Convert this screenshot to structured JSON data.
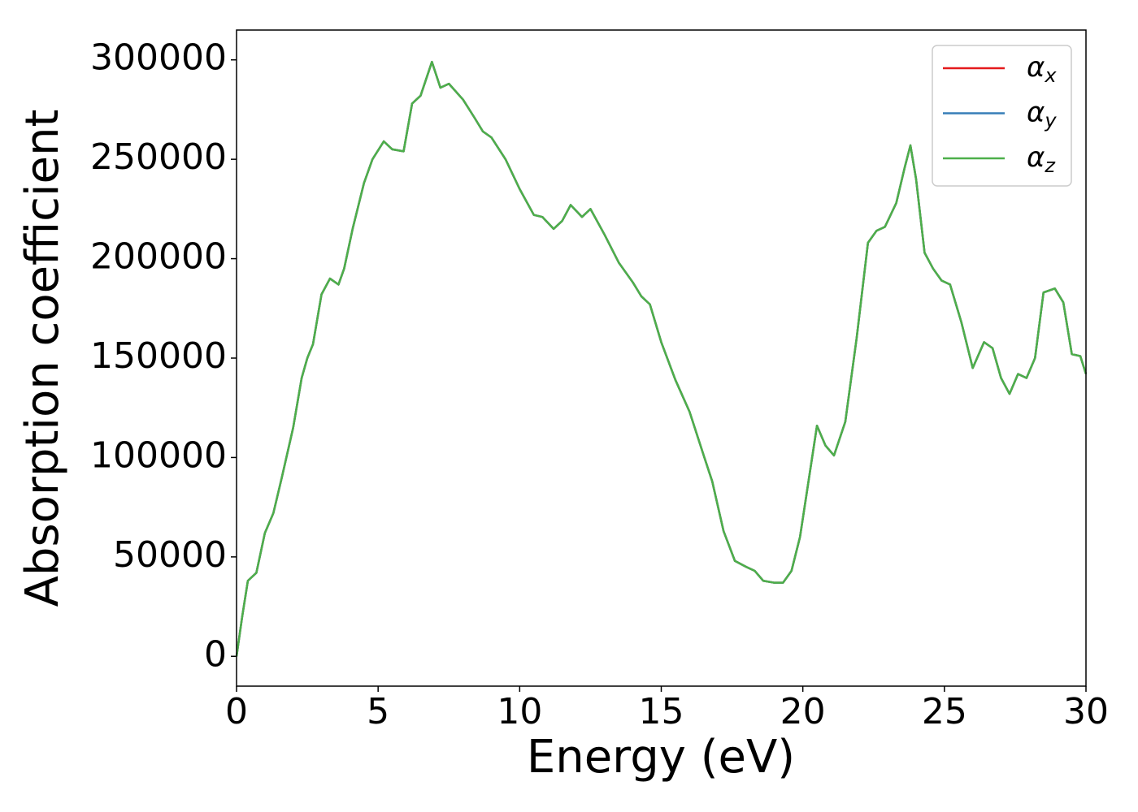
{
  "chart_data": {
    "type": "line",
    "xlabel": "Energy (eV)",
    "ylabel": "Absorption coefficient",
    "x": [
      0,
      0.2,
      0.4,
      0.7,
      1.0,
      1.3,
      1.6,
      2.0,
      2.3,
      2.5,
      2.7,
      3.0,
      3.3,
      3.6,
      3.8,
      4.1,
      4.5,
      4.8,
      5.2,
      5.5,
      5.9,
      6.2,
      6.5,
      6.9,
      7.2,
      7.5,
      8.0,
      8.4,
      8.7,
      9.0,
      9.5,
      10.0,
      10.5,
      10.8,
      11.2,
      11.5,
      11.8,
      12.2,
      12.5,
      13.0,
      13.5,
      14.0,
      14.3,
      14.6,
      15.0,
      15.5,
      16.0,
      16.5,
      16.8,
      17.2,
      17.6,
      18.0,
      18.3,
      18.6,
      19.0,
      19.3,
      19.6,
      19.9,
      20.2,
      20.5,
      20.8,
      21.1,
      21.5,
      21.9,
      22.3,
      22.6,
      22.9,
      23.3,
      23.6,
      23.8,
      24.0,
      24.3,
      24.6,
      24.9,
      25.2,
      25.6,
      26.0,
      26.4,
      26.7,
      27.0,
      27.3,
      27.6,
      27.9,
      28.2,
      28.5,
      28.9,
      29.2,
      29.5,
      29.8,
      30.0
    ],
    "series": [
      {
        "name": "αx",
        "color": "#e41a1c",
        "values": [
          0,
          20000,
          38000,
          42000,
          62000,
          72000,
          90000,
          115000,
          140000,
          150000,
          157000,
          182000,
          190000,
          187000,
          195000,
          215000,
          238000,
          250000,
          259000,
          255000,
          254000,
          278000,
          282000,
          299000,
          286000,
          288000,
          280000,
          271000,
          264000,
          261000,
          250000,
          235000,
          222000,
          221000,
          215000,
          219000,
          227000,
          221000,
          225000,
          212000,
          198000,
          188000,
          181000,
          177000,
          158000,
          139000,
          123000,
          101000,
          88000,
          63000,
          48000,
          45000,
          43000,
          38000,
          37000,
          37000,
          43000,
          60000,
          88000,
          116000,
          106000,
          101000,
          118000,
          160000,
          208000,
          214000,
          216000,
          228000,
          246000,
          257000,
          240000,
          203000,
          195000,
          189000,
          187000,
          168000,
          145000,
          158000,
          155000,
          140000,
          132000,
          142000,
          140000,
          150000,
          183000,
          185000,
          178000,
          152000,
          151000,
          142000
        ]
      },
      {
        "name": "αy",
        "color": "#377eb8",
        "values": [
          0,
          20000,
          38000,
          42000,
          62000,
          72000,
          90000,
          115000,
          140000,
          150000,
          157000,
          182000,
          190000,
          187000,
          195000,
          215000,
          238000,
          250000,
          259000,
          255000,
          254000,
          278000,
          282000,
          299000,
          286000,
          288000,
          280000,
          271000,
          264000,
          261000,
          250000,
          235000,
          222000,
          221000,
          215000,
          219000,
          227000,
          221000,
          225000,
          212000,
          198000,
          188000,
          181000,
          177000,
          158000,
          139000,
          123000,
          101000,
          88000,
          63000,
          48000,
          45000,
          43000,
          38000,
          37000,
          37000,
          43000,
          60000,
          88000,
          116000,
          106000,
          101000,
          118000,
          160000,
          208000,
          214000,
          216000,
          228000,
          246000,
          257000,
          240000,
          203000,
          195000,
          189000,
          187000,
          168000,
          145000,
          158000,
          155000,
          140000,
          132000,
          142000,
          140000,
          150000,
          183000,
          185000,
          178000,
          152000,
          151000,
          142000
        ]
      },
      {
        "name": "αz",
        "color": "#4daf4a",
        "values": [
          0,
          20000,
          38000,
          42000,
          62000,
          72000,
          90000,
          115000,
          140000,
          150000,
          157000,
          182000,
          190000,
          187000,
          195000,
          215000,
          238000,
          250000,
          259000,
          255000,
          254000,
          278000,
          282000,
          299000,
          286000,
          288000,
          280000,
          271000,
          264000,
          261000,
          250000,
          235000,
          222000,
          221000,
          215000,
          219000,
          227000,
          221000,
          225000,
          212000,
          198000,
          188000,
          181000,
          177000,
          158000,
          139000,
          123000,
          101000,
          88000,
          63000,
          48000,
          45000,
          43000,
          38000,
          37000,
          37000,
          43000,
          60000,
          88000,
          116000,
          106000,
          101000,
          118000,
          160000,
          208000,
          214000,
          216000,
          228000,
          246000,
          257000,
          240000,
          203000,
          195000,
          189000,
          187000,
          168000,
          145000,
          158000,
          155000,
          140000,
          132000,
          142000,
          140000,
          150000,
          183000,
          185000,
          178000,
          152000,
          151000,
          142000
        ]
      }
    ],
    "xlim": [
      0,
      30
    ],
    "xticks": [
      0,
      5,
      10,
      15,
      20,
      25,
      30
    ],
    "ylim": [
      -15000,
      315000
    ],
    "yticks": [
      0,
      50000,
      100000,
      150000,
      200000,
      250000,
      300000
    ],
    "legend": "upper right",
    "grid": false
  }
}
